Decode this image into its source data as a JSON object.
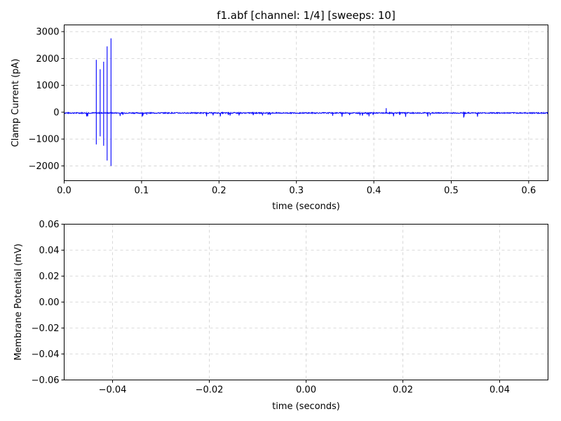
{
  "figure_title": "f1.abf [channel: 1/4] [sweeps: 10]",
  "chart_data": [
    {
      "type": "line",
      "title": "f1.abf [channel: 1/4] [sweeps: 10]",
      "xlabel": "time (seconds)",
      "ylabel": "Clamp Current (pA)",
      "xlim": [
        0.0,
        0.625
      ],
      "ylim": [
        -2550,
        3250
      ],
      "xticks": [
        0.0,
        0.1,
        0.2,
        0.3,
        0.4,
        0.5,
        0.6
      ],
      "xtick_labels": [
        "0.0",
        "0.1",
        "0.2",
        "0.3",
        "0.4",
        "0.5",
        "0.6"
      ],
      "yticks": [
        -2000,
        -1000,
        0,
        1000,
        2000,
        3000
      ],
      "ytick_labels": [
        "−2000",
        "−1000",
        "0",
        "1000",
        "2000",
        "3000"
      ],
      "grid": true,
      "color": "#0000ff",
      "baseline": -30,
      "spikes": [
        {
          "x": 0.0415,
          "high": 1950,
          "low": -1200
        },
        {
          "x": 0.0465,
          "high": 1600,
          "low": -900
        },
        {
          "x": 0.051,
          "high": 1880,
          "low": -1250
        },
        {
          "x": 0.0555,
          "high": 2450,
          "low": -1800
        },
        {
          "x": 0.0605,
          "high": 2750,
          "low": -2000
        },
        {
          "x": 0.416,
          "high": 150,
          "low": -60
        },
        {
          "x": 0.516,
          "high": 20,
          "low": -200
        }
      ]
    },
    {
      "type": "line",
      "title": "",
      "xlabel": "time (seconds)",
      "ylabel": "Membrane Potential (mV)",
      "xlim": [
        -0.05,
        0.05
      ],
      "ylim": [
        -0.06,
        0.06
      ],
      "xticks": [
        -0.04,
        -0.02,
        0.0,
        0.02,
        0.04
      ],
      "xtick_labels": [
        "−0.04",
        "−0.02",
        "0.00",
        "0.02",
        "0.04"
      ],
      "yticks": [
        -0.06,
        -0.04,
        -0.02,
        0.0,
        0.02,
        0.04,
        0.06
      ],
      "ytick_labels": [
        "−0.06",
        "−0.04",
        "−0.02",
        "0.00",
        "0.02",
        "0.04",
        "0.06"
      ],
      "grid": true,
      "series": []
    }
  ]
}
